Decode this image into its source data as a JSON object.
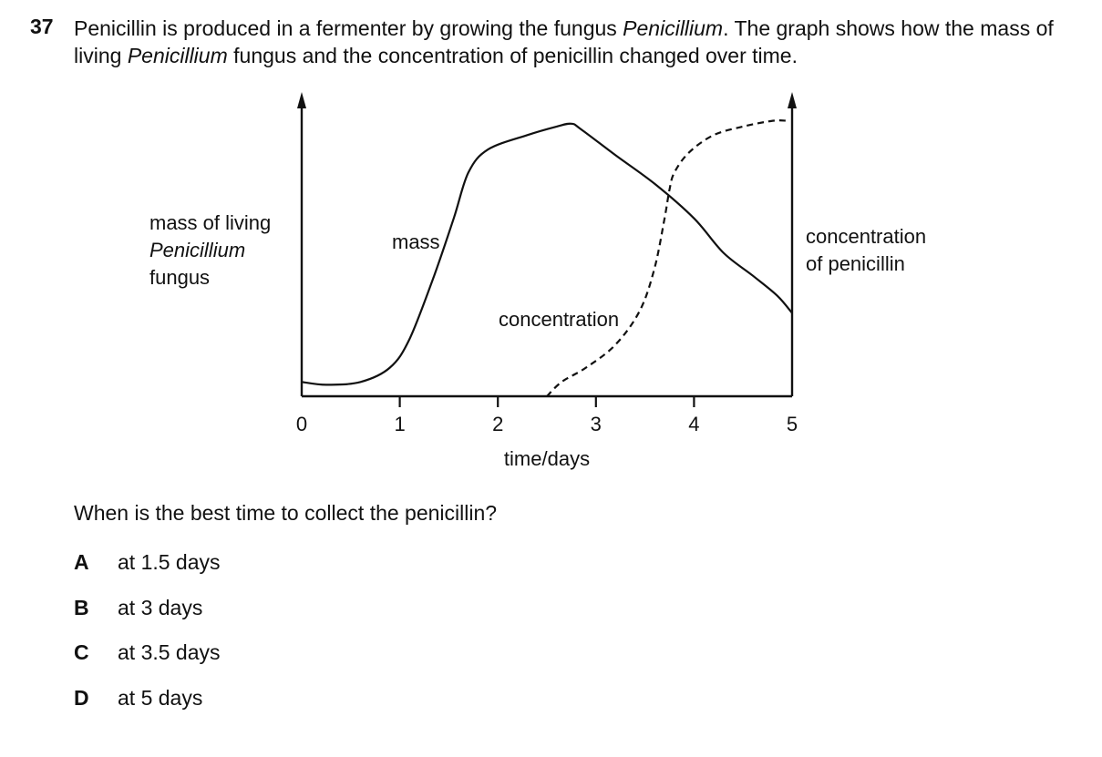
{
  "question": {
    "number": "37",
    "stem_parts": [
      {
        "text": "Penicillin is produced in a fermenter by growing the fungus ",
        "italic": false
      },
      {
        "text": "Penicillium",
        "italic": true
      },
      {
        "text": ". The graph shows how the mass of living ",
        "italic": false
      },
      {
        "text": "Penicillium",
        "italic": true
      },
      {
        "text": " fungus and the concentration of penicillin changed over time.",
        "italic": false
      }
    ],
    "prompt": "When is the best time to collect the penicillin?",
    "options": [
      {
        "letter": "A",
        "text": "at 1.5 days"
      },
      {
        "letter": "B",
        "text": "at 3 days"
      },
      {
        "letter": "C",
        "text": "at 3.5 days"
      },
      {
        "letter": "D",
        "text": "at 5 days"
      }
    ]
  },
  "chart_data": {
    "type": "line",
    "xlabel": "time / days",
    "xticks": [
      "0",
      "1",
      "2",
      "3",
      "4",
      "5"
    ],
    "xlim": [
      0,
      5
    ],
    "y_left_label_lines": [
      "mass of living",
      "Penicillium",
      "fungus"
    ],
    "y_right_label_lines": [
      "concentration",
      "of penicillin"
    ],
    "grid": false,
    "series": [
      {
        "name": "mass",
        "style": "solid",
        "x": [
          0,
          0.25,
          0.6,
          0.9,
          1.1,
          1.35,
          1.55,
          1.7,
          1.9,
          2.3,
          2.6,
          2.75,
          2.85,
          3.2,
          3.6,
          4.0,
          4.3,
          4.6,
          4.85,
          5.0
        ],
        "y": [
          0.05,
          0.04,
          0.05,
          0.1,
          0.2,
          0.42,
          0.62,
          0.78,
          0.86,
          0.91,
          0.94,
          0.95,
          0.93,
          0.84,
          0.74,
          0.62,
          0.5,
          0.42,
          0.35,
          0.29
        ]
      },
      {
        "name": "concentration",
        "style": "dashed",
        "x": [
          2.5,
          2.65,
          2.9,
          3.2,
          3.45,
          3.6,
          3.7,
          3.75,
          3.8,
          3.95,
          4.2,
          4.5,
          4.8,
          4.95
        ],
        "y": [
          0.0,
          0.05,
          0.1,
          0.18,
          0.3,
          0.45,
          0.62,
          0.72,
          0.78,
          0.85,
          0.91,
          0.94,
          0.96,
          0.96
        ]
      }
    ],
    "annotations": [
      {
        "text": "mass",
        "series": "mass"
      },
      {
        "text": "concentration",
        "series": "concentration"
      }
    ]
  },
  "colors": {
    "ink": "#111111",
    "background": "#ffffff"
  }
}
